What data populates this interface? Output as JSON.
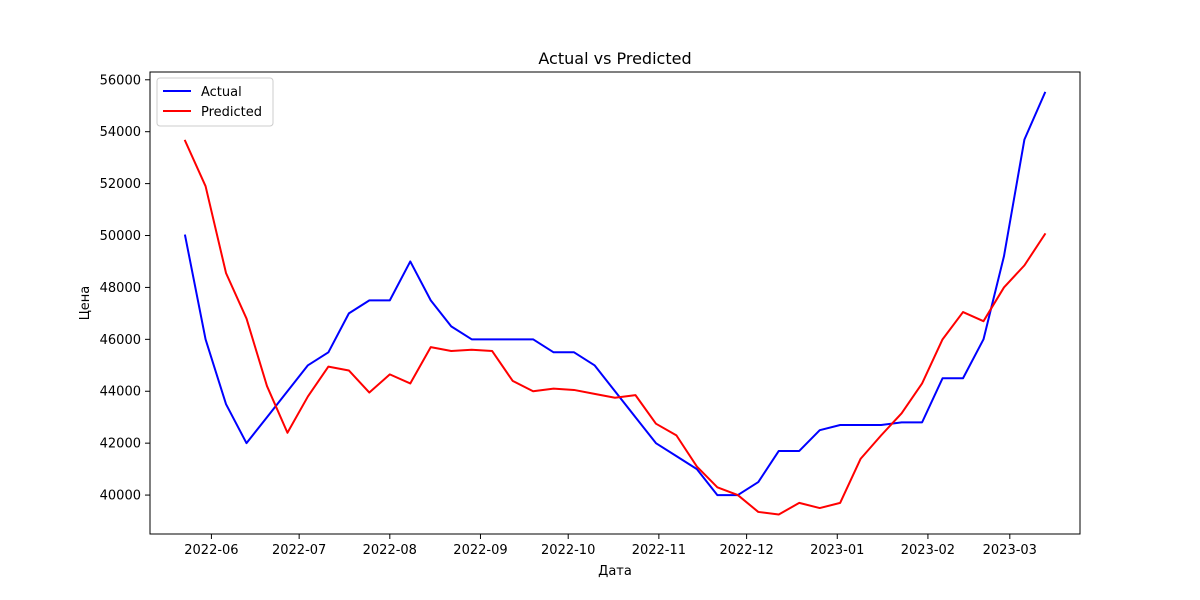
{
  "chart_data": {
    "type": "line",
    "title": "Actual vs Predicted",
    "xlabel": "Дата",
    "ylabel": "Цена",
    "x_type": "date",
    "xlim": [
      "2022-05-11",
      "2023-03-25"
    ],
    "ylim": [
      38500,
      56300
    ],
    "x_ticks": [
      "2022-06-01",
      "2022-07-01",
      "2022-08-01",
      "2022-09-01",
      "2022-10-01",
      "2022-11-01",
      "2022-12-01",
      "2023-01-01",
      "2023-02-01",
      "2023-03-01"
    ],
    "x_tick_labels": [
      "2022-06",
      "2022-07",
      "2022-08",
      "2022-09",
      "2022-10",
      "2022-11",
      "2022-12",
      "2023-01",
      "2023-02",
      "2023-03"
    ],
    "y_ticks": [
      40000,
      42000,
      44000,
      46000,
      48000,
      50000,
      52000,
      54000,
      56000
    ],
    "y_tick_labels": [
      "40000",
      "42000",
      "44000",
      "46000",
      "48000",
      "50000",
      "52000",
      "54000",
      "56000"
    ],
    "grid": false,
    "legend_position": "top-left",
    "x": [
      "2022-05-23",
      "2022-05-30",
      "2022-06-06",
      "2022-06-13",
      "2022-06-20",
      "2022-06-27",
      "2022-07-04",
      "2022-07-11",
      "2022-07-18",
      "2022-07-25",
      "2022-08-01",
      "2022-08-08",
      "2022-08-15",
      "2022-08-22",
      "2022-08-29",
      "2022-09-05",
      "2022-09-12",
      "2022-09-19",
      "2022-09-26",
      "2022-10-03",
      "2022-10-10",
      "2022-10-17",
      "2022-10-24",
      "2022-10-31",
      "2022-11-07",
      "2022-11-14",
      "2022-11-21",
      "2022-11-28",
      "2022-12-05",
      "2022-12-12",
      "2022-12-19",
      "2022-12-26",
      "2023-01-02",
      "2023-01-09",
      "2023-01-16",
      "2023-01-23",
      "2023-01-30",
      "2023-02-06",
      "2023-02-13",
      "2023-02-20",
      "2023-02-27",
      "2023-03-06",
      "2023-03-13"
    ],
    "series": [
      {
        "name": "Actual",
        "color": "#0000ff",
        "values": [
          50000,
          46000,
          43500,
          42000,
          43000,
          44000,
          45000,
          45500,
          47000,
          47500,
          47500,
          49000,
          47500,
          46500,
          46000,
          46000,
          46000,
          46000,
          45500,
          45500,
          45000,
          44000,
          43000,
          42000,
          41500,
          41000,
          40000,
          40000,
          40500,
          41700,
          41700,
          42500,
          42700,
          42700,
          42700,
          42800,
          42800,
          44500,
          44500,
          46000,
          49200,
          53700,
          55500
        ]
      },
      {
        "name": "Predicted",
        "color": "#ff0000",
        "values": [
          53650,
          51900,
          48550,
          46800,
          44200,
          42400,
          43800,
          44950,
          44800,
          43950,
          44650,
          44300,
          45700,
          45550,
          45600,
          45550,
          44400,
          44000,
          44100,
          44050,
          43900,
          43750,
          43850,
          42750,
          42300,
          41100,
          40300,
          40000,
          39350,
          39250,
          39700,
          39500,
          39700,
          41400,
          42300,
          43150,
          44300,
          46000,
          47050,
          46700,
          48000,
          48850,
          50050
        ]
      }
    ]
  }
}
